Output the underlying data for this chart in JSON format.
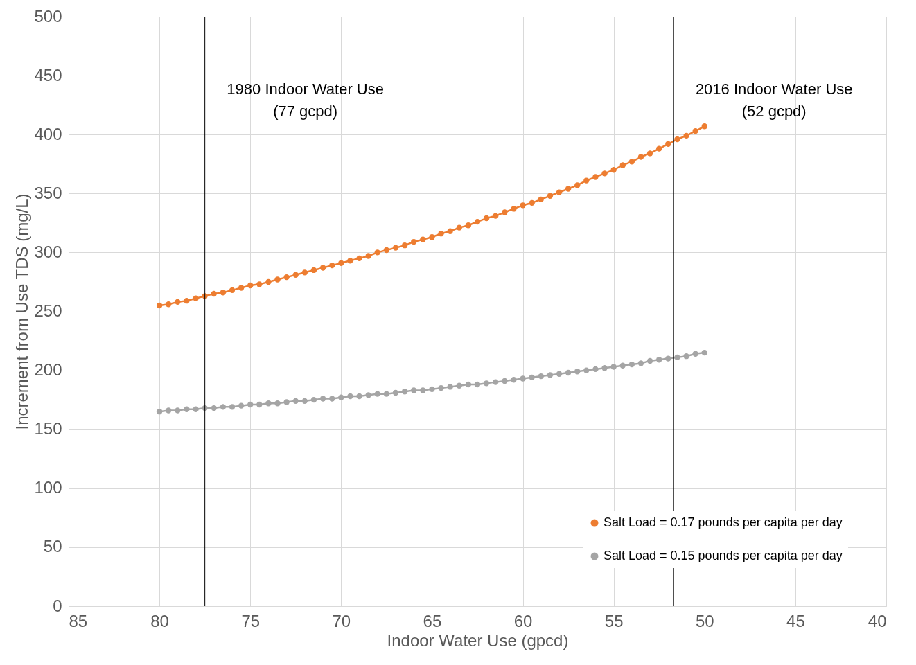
{
  "chart_data": {
    "type": "line",
    "xlabel": "Indoor Water Use (gpcd)",
    "ylabel": "Increment from Use TDS (mg/L)",
    "x": [
      80,
      79.5,
      79,
      78.5,
      78,
      77.5,
      77,
      76.5,
      76,
      75.5,
      75,
      74.5,
      74,
      73.5,
      73,
      72.5,
      72,
      71.5,
      71,
      70.5,
      70,
      69.5,
      69,
      68.5,
      68,
      67.5,
      67,
      66.5,
      66,
      65.5,
      65,
      64.5,
      64,
      63.5,
      63,
      62.5,
      62,
      61.5,
      61,
      60.5,
      60,
      59.5,
      59,
      58.5,
      58,
      57.5,
      57,
      56.5,
      56,
      55.5,
      55,
      54.5,
      54,
      53.5,
      53,
      52.5,
      52,
      51.5,
      51,
      50.5,
      50
    ],
    "series": [
      {
        "name": "Salt Load = 0.17 pounds per capita per day",
        "color": "#ed7d31",
        "values": [
          255,
          256,
          258,
          259,
          261,
          263,
          265,
          266,
          268,
          270,
          272,
          273,
          275,
          277,
          279,
          281,
          283,
          285,
          287,
          289,
          291,
          293,
          295,
          297,
          300,
          302,
          304,
          306,
          309,
          311,
          313,
          316,
          318,
          321,
          323,
          326,
          329,
          331,
          334,
          337,
          340,
          342,
          345,
          348,
          351,
          354,
          357,
          361,
          364,
          367,
          370,
          374,
          377,
          381,
          384,
          388,
          392,
          396,
          399,
          403,
          407
        ]
      },
      {
        "name": "Salt Load = 0.15 pounds per capita per day",
        "color": "#a5a5a5",
        "values": [
          165,
          166,
          166,
          167,
          167,
          168,
          168,
          169,
          169,
          170,
          171,
          171,
          172,
          172,
          173,
          174,
          174,
          175,
          176,
          176,
          177,
          178,
          178,
          179,
          180,
          180,
          181,
          182,
          183,
          183,
          184,
          185,
          186,
          187,
          188,
          188,
          189,
          190,
          191,
          192,
          193,
          194,
          195,
          196,
          197,
          198,
          199,
          200,
          201,
          202,
          203,
          204,
          205,
          206,
          208,
          209,
          210,
          211,
          212,
          214,
          215
        ]
      }
    ],
    "xlim": [
      85,
      40
    ],
    "xticks": [
      85,
      80,
      75,
      70,
      65,
      60,
      55,
      50,
      45,
      40
    ],
    "ylim": [
      0,
      500
    ],
    "yticks": [
      0,
      50,
      100,
      150,
      200,
      250,
      300,
      350,
      400,
      450,
      500
    ],
    "ref_lines": [
      {
        "axis": "x",
        "value": 77.5,
        "label": "1980 Indoor Water Use\n(77 gcpd)",
        "color": "#000000"
      },
      {
        "axis": "x",
        "value": 51.7,
        "label": "2016 Indoor Water Use\n(52 gcpd)",
        "color": "#000000"
      }
    ],
    "grid": true,
    "legend": "bottom right",
    "marker": "circle",
    "line_style": "solid"
  }
}
